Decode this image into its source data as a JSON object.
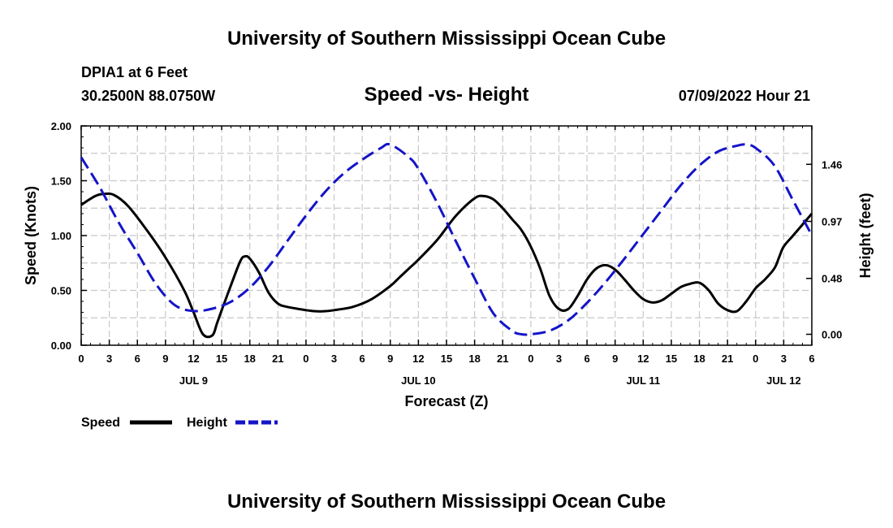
{
  "page": {
    "title": "University of Southern Mississippi Ocean Cube",
    "footer_title": "University of Southern Mississippi Ocean Cube"
  },
  "chart_data": {
    "type": "line",
    "title": "Speed -vs- Height",
    "station": "DPIA1 at 6 Feet",
    "location": "30.2500N  88.0750W",
    "datetime": "07/09/2022 Hour 21",
    "xlabel": "Forecast (Z)",
    "ylabel_left": "Speed (Knots)",
    "ylabel_right": "Height (feet)",
    "x_unit": "hours since 2022-07-09 00Z",
    "xlim": [
      0,
      78
    ],
    "ylim_left": [
      0,
      2
    ],
    "ylim_right_note": "right axis spans 0.00 ft (at 0.10 kn) to 1.46 ft (at 1.65 kn)",
    "ylim_right": [
      -0.094,
      1.79
    ],
    "left_ticks": [
      "0.00",
      "0.50",
      "1.00",
      "1.50",
      "2.00"
    ],
    "right_ticks": [
      "0.00",
      "0.48",
      "0.97",
      "1.46"
    ],
    "x_tick_labels": [
      "0",
      "3",
      "6",
      "9",
      "12",
      "15",
      "18",
      "21",
      "0",
      "3",
      "6",
      "9",
      "12",
      "15",
      "18",
      "21",
      "0",
      "3",
      "6",
      "9",
      "12",
      "15",
      "18",
      "21",
      "0",
      "3",
      "6"
    ],
    "date_labels": [
      {
        "label": "JUL 9",
        "x": 12
      },
      {
        "label": "JUL 10",
        "x": 36
      },
      {
        "label": "JUL 11",
        "x": 60
      },
      {
        "label": "JUL 12",
        "x": 75
      }
    ],
    "grid": true,
    "legend_position": "bottom-left",
    "series": [
      {
        "name": "Speed",
        "axis": "left",
        "color": "#000000",
        "style": "solid",
        "x": [
          0,
          1.5,
          2.5,
          3.5,
          5,
          7,
          9,
          11,
          12,
          13,
          14,
          14.5,
          15,
          16,
          17,
          17.5,
          18,
          19,
          20,
          21,
          22,
          24,
          25,
          26,
          27,
          29,
          31,
          33,
          34,
          35,
          36,
          38,
          40,
          42,
          43,
          44,
          45,
          46,
          47,
          48,
          49,
          50,
          51,
          52,
          53,
          54,
          55,
          56,
          57,
          58,
          59,
          60,
          61,
          62,
          63,
          64,
          65,
          66,
          67,
          68,
          69,
          70,
          71,
          72,
          73,
          74,
          74.5,
          75,
          76,
          77,
          78
        ],
        "values": [
          1.28,
          1.36,
          1.38,
          1.37,
          1.27,
          1.05,
          0.8,
          0.5,
          0.3,
          0.1,
          0.09,
          0.2,
          0.32,
          0.55,
          0.77,
          0.81,
          0.79,
          0.66,
          0.48,
          0.38,
          0.35,
          0.32,
          0.31,
          0.31,
          0.32,
          0.35,
          0.42,
          0.54,
          0.62,
          0.7,
          0.78,
          0.96,
          1.18,
          1.34,
          1.36,
          1.33,
          1.25,
          1.15,
          1.05,
          0.9,
          0.7,
          0.45,
          0.33,
          0.33,
          0.45,
          0.6,
          0.7,
          0.73,
          0.69,
          0.6,
          0.5,
          0.42,
          0.39,
          0.41,
          0.47,
          0.53,
          0.56,
          0.57,
          0.5,
          0.38,
          0.32,
          0.31,
          0.4,
          0.52,
          0.6,
          0.7,
          0.8,
          0.9,
          1.0,
          1.1,
          1.2
        ]
      },
      {
        "name": "Height",
        "axis": "right",
        "color": "#1414c8",
        "style": "dashed",
        "x": [
          0,
          2,
          4,
          6,
          8,
          10,
          12,
          14,
          16,
          18,
          20,
          22,
          24,
          26,
          28,
          30,
          32,
          33,
          35,
          36,
          38,
          40,
          42,
          44,
          46,
          47,
          48,
          50,
          52,
          54,
          56,
          58,
          60,
          62,
          64,
          66,
          68,
          70,
          71,
          72,
          74,
          76,
          78
        ],
        "values": [
          1.52,
          1.26,
          0.96,
          0.7,
          0.43,
          0.25,
          0.2,
          0.22,
          0.28,
          0.4,
          0.58,
          0.8,
          1.02,
          1.22,
          1.38,
          1.5,
          1.6,
          1.63,
          1.52,
          1.42,
          1.13,
          0.8,
          0.48,
          0.18,
          0.03,
          0.0,
          0.0,
          0.03,
          0.12,
          0.27,
          0.45,
          0.65,
          0.86,
          1.07,
          1.28,
          1.45,
          1.57,
          1.62,
          1.63,
          1.6,
          1.45,
          1.15,
          0.85
        ]
      }
    ]
  }
}
